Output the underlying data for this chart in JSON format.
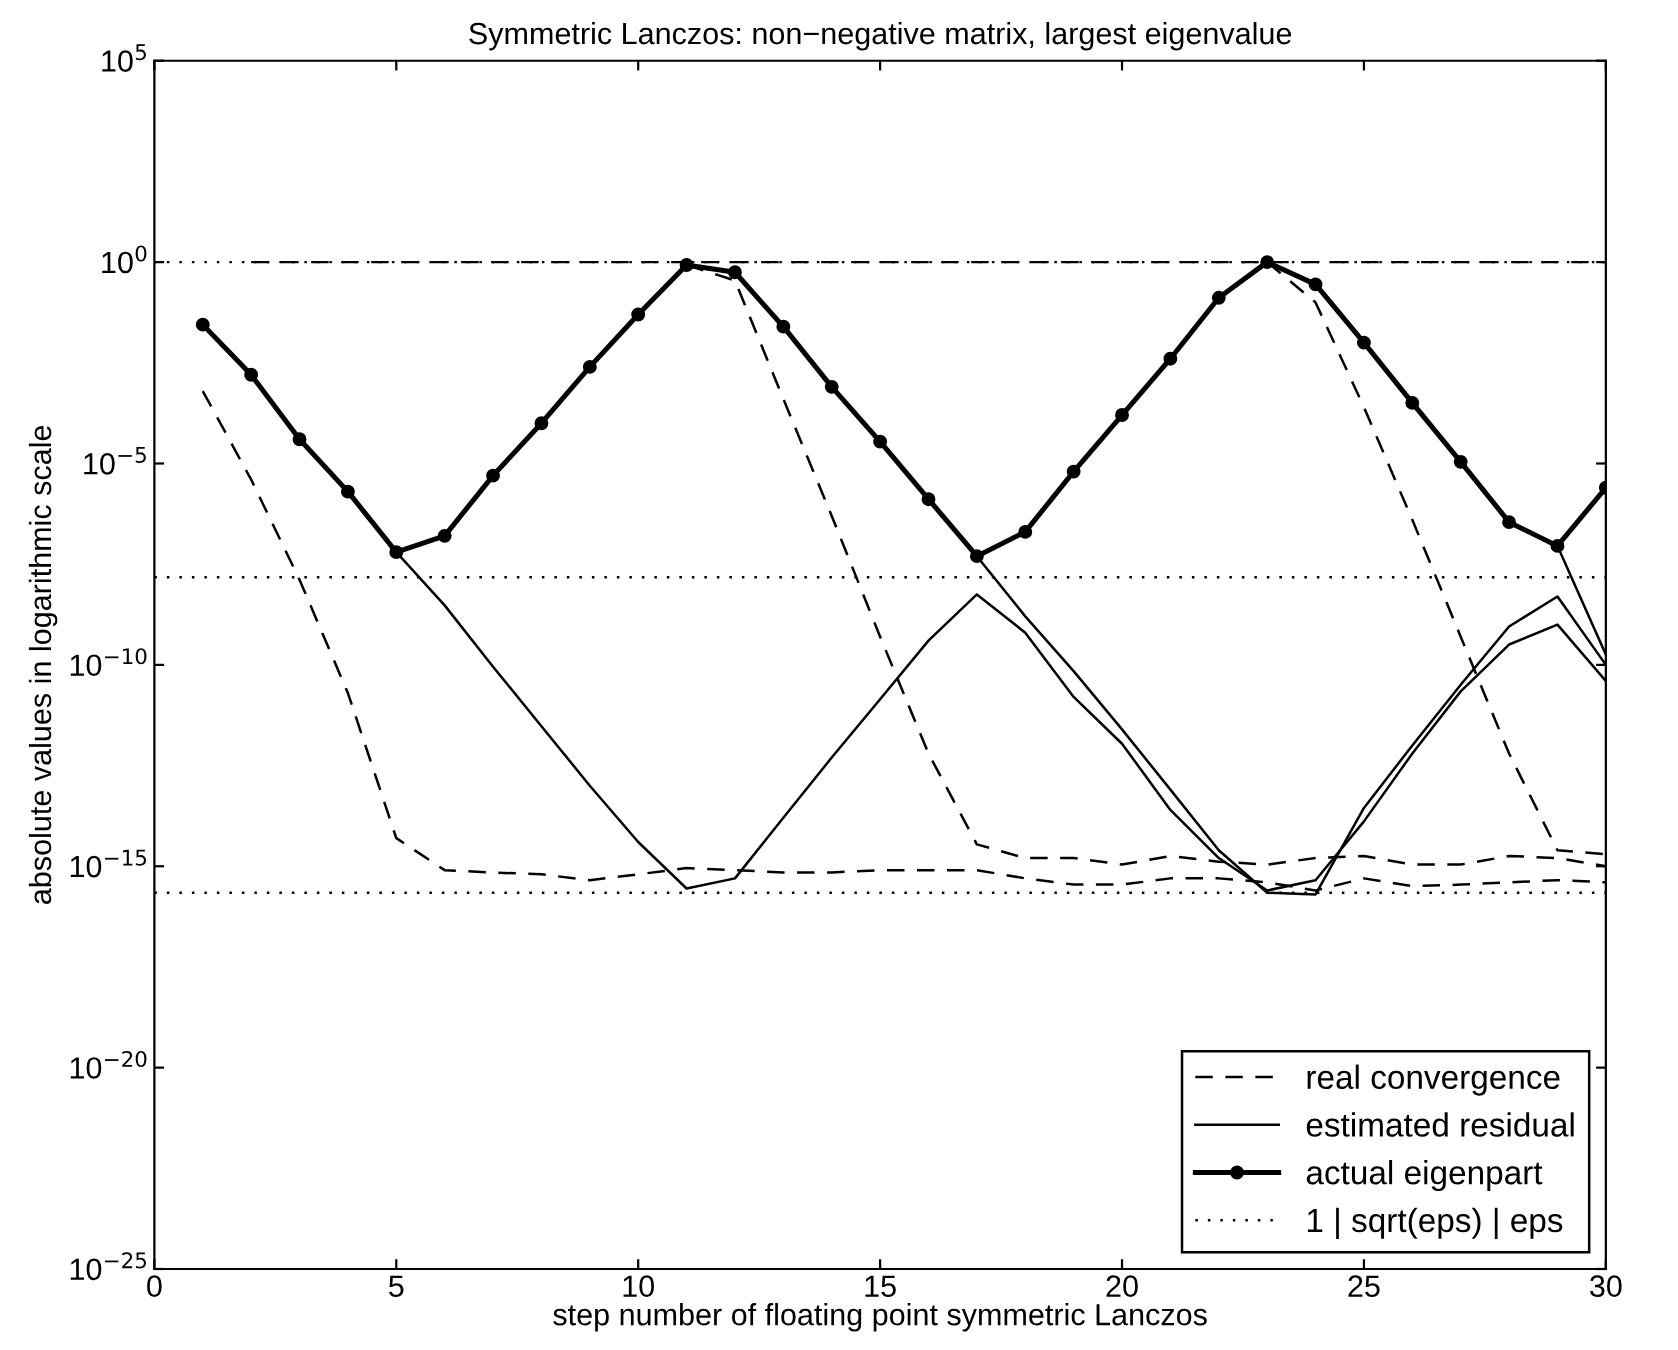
{
  "chart_data": {
    "type": "line",
    "title": "Symmetric Lanczos: non−negative matrix, largest eigenvalue",
    "xlabel": "step number of floating point symmetric Lanczos",
    "ylabel": "absolute values in logarithmic scale",
    "log": "y",
    "grid": false,
    "legend": "bottom right",
    "xlim": [
      0,
      30
    ],
    "xticks": [
      0,
      5,
      10,
      15,
      20,
      25,
      30
    ],
    "ylim": [
      1e-25,
      100000
    ],
    "yticks": [
      {
        "value": 1e-25,
        "label": "10$^{−25}$"
      },
      {
        "value": 1e-20,
        "label": "10$^{−20}$"
      },
      {
        "value": 1e-15,
        "label": "10$^{−15}$"
      },
      {
        "value": 1e-10,
        "label": "10$^{−10}$"
      },
      {
        "value": 1e-05,
        "label": "10$^{−5}$"
      },
      {
        "value": 1,
        "label": "10$^{0}$"
      },
      {
        "value": 100000,
        "label": "10$^{5}$"
      }
    ],
    "series": [
      {
        "name": "real convergence",
        "color": "#000000",
        "line_style": "dashed",
        "marker": "none",
        "x": [
          1,
          2,
          3,
          4,
          5,
          6,
          7,
          8,
          9,
          10,
          11,
          12,
          13,
          14,
          15,
          16,
          17,
          18,
          19,
          20,
          21,
          22,
          23,
          24,
          25,
          26,
          27,
          28,
          29,
          30
        ],
        "values": [
          0.00063,
          4e-06,
          1.3e-08,
          2e-11,
          5e-15,
          8e-16,
          7e-16,
          6.3e-16,
          4.5e-16,
          6.3e-16,
          9e-16,
          8e-16,
          7e-16,
          7e-16,
          8e-16,
          8e-16,
          8e-16,
          5e-16,
          3.5e-16,
          3.5e-16,
          5e-16,
          5e-16,
          4e-16,
          2.5e-16,
          5e-16,
          3.2e-16,
          3.5e-16,
          4e-16,
          4.5e-16,
          4e-16
        ]
      },
      {
        "name": "estimated residual",
        "color": "#000000",
        "line_style": "solid",
        "marker": "none",
        "x": [
          5,
          6,
          7,
          8,
          9,
          10,
          11,
          12,
          13,
          14,
          15,
          16,
          17,
          18,
          19,
          20,
          21,
          22,
          23,
          24,
          25,
          26,
          27,
          28,
          29,
          30
        ],
        "values": [
          6.3e-08,
          3e-09,
          9e-11,
          3e-12,
          1e-13,
          4e-15,
          2.8e-16,
          5e-16,
          1.6e-14,
          5e-13,
          1.4e-11,
          4e-10,
          5.6e-09,
          6.3e-10,
          1.6e-11,
          1.1e-12,
          2.5e-14,
          1.6e-15,
          2.5e-16,
          4.5e-16,
          1.3e-14,
          6.3e-13,
          2.2e-11,
          3.2e-10,
          1e-09,
          4e-11
        ]
      },
      {
        "name": "actual eigenpart",
        "color": "#000000",
        "line_style": "solid",
        "marker": "circle",
        "x": [
          1,
          2,
          3,
          4,
          5,
          6,
          7,
          8,
          9,
          10,
          11,
          12,
          13,
          14,
          15,
          16,
          17,
          18,
          19,
          20,
          21,
          22,
          23,
          24,
          25,
          26,
          27,
          28,
          29,
          30
        ],
        "values": [
          0.028,
          0.0016,
          4e-05,
          2e-06,
          6.3e-08,
          1.6e-07,
          5e-06,
          0.0001,
          0.0025,
          0.05,
          0.85,
          0.56,
          0.025,
          0.0008,
          3.5e-05,
          1.3e-06,
          5e-08,
          2e-07,
          6.3e-06,
          0.00016,
          0.004,
          0.13,
          1,
          0.28,
          0.01,
          0.00032,
          1.1e-05,
          3.5e-07,
          9e-08,
          2.5e-06
        ]
      },
      {
        "color": "#000000",
        "line_style": "dashed",
        "marker": "none",
        "x": [
          11,
          12,
          13,
          14,
          15,
          16,
          17,
          18,
          19,
          20,
          21,
          22,
          23,
          24,
          25,
          26,
          27,
          28,
          29,
          30
        ],
        "values": [
          0.85,
          0.35,
          0.0004,
          5e-07,
          5e-10,
          6.3e-13,
          3.5e-15,
          1.6e-15,
          1.6e-15,
          1.1e-15,
          1.8e-15,
          1.3e-15,
          1.1e-15,
          1.6e-15,
          1.8e-15,
          1.1e-15,
          1.1e-15,
          1.8e-15,
          1.6e-15,
          1e-15
        ]
      },
      {
        "color": "#000000",
        "line_style": "dashed",
        "marker": "none",
        "x": [
          23,
          24,
          25,
          26,
          27,
          28,
          29,
          30
        ],
        "values": [
          1,
          0.1,
          0.00025,
          4e-07,
          5e-10,
          6.3e-13,
          2.5e-15,
          2e-15
        ]
      },
      {
        "color": "#000000",
        "line_style": "dashed",
        "marker": "none",
        "x": [
          2,
          3,
          4,
          5,
          6,
          7,
          8,
          9,
          10,
          11,
          12,
          13,
          14,
          15,
          16,
          17,
          18,
          19,
          20,
          21,
          22,
          23,
          24,
          25,
          26,
          27,
          28,
          29,
          30
        ],
        "values": [
          1,
          1,
          1,
          1,
          1,
          1,
          1,
          1,
          1,
          1,
          1,
          1,
          1,
          1,
          1,
          1,
          1,
          1,
          1,
          1,
          1,
          1,
          1,
          1,
          1,
          1,
          1,
          1,
          1
        ]
      },
      {
        "color": "#000000",
        "line_style": "solid",
        "marker": "none",
        "x": [
          17,
          18,
          19,
          20,
          21,
          22,
          23,
          24,
          25,
          26,
          27,
          28,
          29,
          30
        ],
        "values": [
          5e-08,
          1.6e-09,
          7e-11,
          2.5e-12,
          8e-14,
          2.5e-15,
          2.2e-16,
          2e-16,
          2.8e-14,
          1e-12,
          3.2e-11,
          9e-10,
          5e-09,
          1e-10
        ]
      },
      {
        "color": "#000000",
        "line_style": "solid",
        "marker": "none",
        "x": [
          29,
          30
        ],
        "values": [
          9e-08,
          1.8e-10
        ]
      }
    ],
    "ref_lines": [
      {
        "axis": "y",
        "value": 1,
        "label": "1 | sqrt(eps) | eps",
        "line_style": "dotted",
        "color": "#000000"
      },
      {
        "axis": "y",
        "value": 1.5e-08,
        "line_style": "dotted",
        "color": "#000000"
      },
      {
        "axis": "y",
        "value": 2.2e-16,
        "line_style": "dotted",
        "color": "#000000"
      }
    ]
  }
}
